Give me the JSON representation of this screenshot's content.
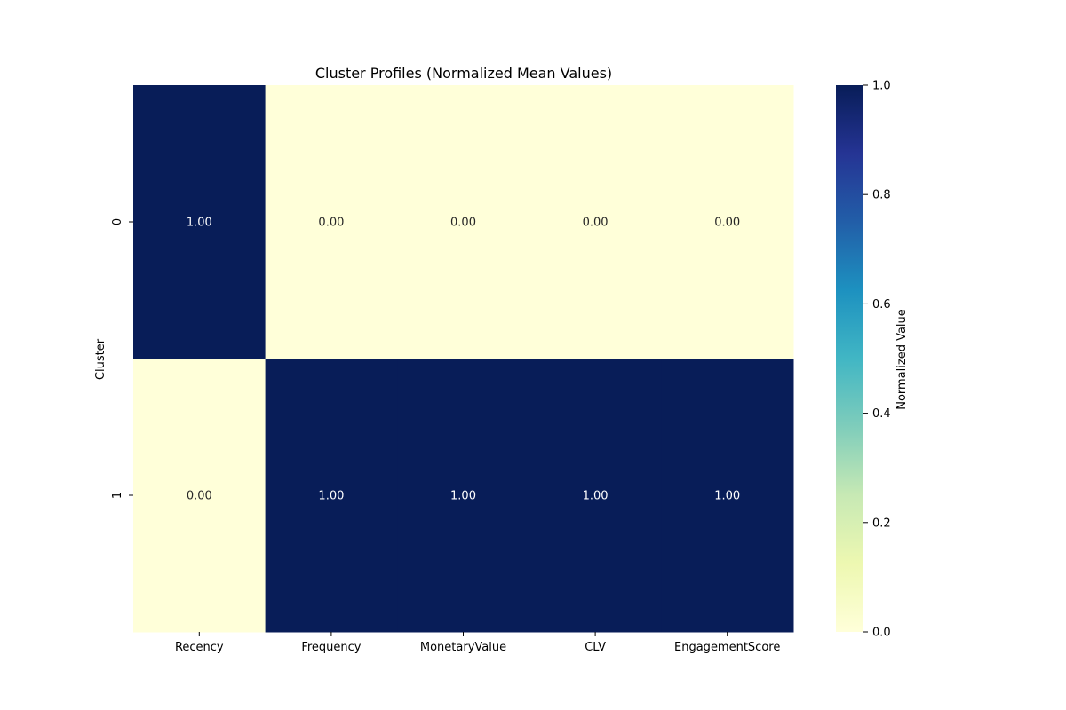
{
  "chart_data": {
    "type": "heatmap",
    "title": "Cluster Profiles (Normalized Mean Values)",
    "xlabel": "",
    "ylabel": "Cluster",
    "x_categories": [
      "Recency",
      "Frequency",
      "MonetaryValue",
      "CLV",
      "EngagementScore"
    ],
    "y_categories": [
      "0",
      "1"
    ],
    "values": [
      [
        1.0,
        0.0,
        0.0,
        0.0,
        0.0
      ],
      [
        0.0,
        1.0,
        1.0,
        1.0,
        1.0
      ]
    ],
    "cell_labels": [
      [
        "1.00",
        "0.00",
        "0.00",
        "0.00",
        "0.00"
      ],
      [
        "0.00",
        "1.00",
        "1.00",
        "1.00",
        "1.00"
      ]
    ],
    "colorbar": {
      "label": "Normalized Value",
      "range": [
        0,
        1
      ],
      "ticks": [
        "0.0",
        "0.2",
        "0.4",
        "0.6",
        "0.8",
        "1.0"
      ],
      "colormap": "YlGnBu",
      "low_color": "#ffffd9",
      "high_color": "#081d58"
    },
    "grid": false
  }
}
